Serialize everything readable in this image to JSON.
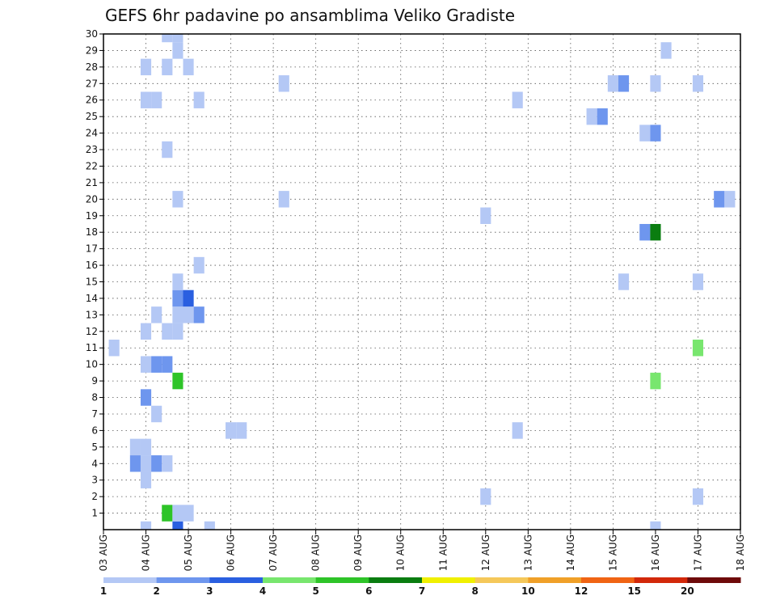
{
  "chart_data": {
    "type": "heatmap",
    "title": "GEFS 6hr padavine po ansamblima Veliko Gradiste",
    "xlabel": "",
    "ylabel": "",
    "x_tick_labels": [
      "03 AUG",
      "04 AUG",
      "05 AUG",
      "06 AUG",
      "07 AUG",
      "08 AUG",
      "09 AUG",
      "10 AUG",
      "11 AUG",
      "12 AUG",
      "13 AUG",
      "14 AUG",
      "15 AUG",
      "16 AUG",
      "17 AUG",
      "18 AUG"
    ],
    "y_tick_labels": [
      "1",
      "2",
      "3",
      "4",
      "5",
      "6",
      "7",
      "8",
      "9",
      "10",
      "11",
      "12",
      "13",
      "14",
      "15",
      "16",
      "17",
      "18",
      "19",
      "20",
      "21",
      "22",
      "23",
      "24",
      "25",
      "26",
      "27",
      "28",
      "29",
      "30"
    ],
    "xlim_steps": [
      0,
      60
    ],
    "steps_per_day": 4,
    "ylim": [
      0,
      30
    ],
    "grid": true,
    "colorbar": {
      "labels": [
        "1",
        "2",
        "3",
        "4",
        "5",
        "6",
        "7",
        "8",
        "10",
        "12",
        "15",
        "20"
      ],
      "colors": [
        "#b4c8f5",
        "#6e96ee",
        "#2a5fe0",
        "#78e66e",
        "#2ec428",
        "#0a7d10",
        "#f0f000",
        "#f5c85a",
        "#f0a028",
        "#f06414",
        "#d2280a",
        "#6e0a0a"
      ]
    },
    "cells": [
      {
        "step": 4,
        "member": 0,
        "level": 0
      },
      {
        "step": 7,
        "member": 0,
        "level": 2
      },
      {
        "step": 10,
        "member": 0,
        "level": 0
      },
      {
        "step": 52,
        "member": 0,
        "level": 0
      },
      {
        "step": 6,
        "member": 1,
        "level": 4
      },
      {
        "step": 7,
        "member": 1,
        "level": 0
      },
      {
        "step": 8,
        "member": 1,
        "level": 0
      },
      {
        "step": 36,
        "member": 2,
        "level": 0
      },
      {
        "step": 56,
        "member": 2,
        "level": 0
      },
      {
        "step": 4,
        "member": 3,
        "level": 0
      },
      {
        "step": 3,
        "member": 4,
        "level": 1
      },
      {
        "step": 4,
        "member": 4,
        "level": 0
      },
      {
        "step": 5,
        "member": 4,
        "level": 1
      },
      {
        "step": 6,
        "member": 4,
        "level": 0
      },
      {
        "step": 3,
        "member": 5,
        "level": 0
      },
      {
        "step": 4,
        "member": 5,
        "level": 0
      },
      {
        "step": 12,
        "member": 6,
        "level": 0
      },
      {
        "step": 13,
        "member": 6,
        "level": 0
      },
      {
        "step": 39,
        "member": 6,
        "level": 0
      },
      {
        "step": 5,
        "member": 7,
        "level": 0
      },
      {
        "step": 4,
        "member": 8,
        "level": 1
      },
      {
        "step": 7,
        "member": 9,
        "level": 4
      },
      {
        "step": 52,
        "member": 9,
        "level": 3
      },
      {
        "step": 4,
        "member": 10,
        "level": 0
      },
      {
        "step": 5,
        "member": 10,
        "level": 1
      },
      {
        "step": 6,
        "member": 10,
        "level": 1
      },
      {
        "step": 1,
        "member": 11,
        "level": 0
      },
      {
        "step": 56,
        "member": 11,
        "level": 3
      },
      {
        "step": 4,
        "member": 12,
        "level": 0
      },
      {
        "step": 6,
        "member": 12,
        "level": 0
      },
      {
        "step": 7,
        "member": 12,
        "level": 0
      },
      {
        "step": 5,
        "member": 13,
        "level": 0
      },
      {
        "step": 7,
        "member": 13,
        "level": 0
      },
      {
        "step": 8,
        "member": 13,
        "level": 0
      },
      {
        "step": 9,
        "member": 13,
        "level": 1
      },
      {
        "step": 7,
        "member": 14,
        "level": 1
      },
      {
        "step": 8,
        "member": 14,
        "level": 2
      },
      {
        "step": 7,
        "member": 15,
        "level": 0
      },
      {
        "step": 49,
        "member": 15,
        "level": 0
      },
      {
        "step": 56,
        "member": 15,
        "level": 0
      },
      {
        "step": 9,
        "member": 16,
        "level": 0
      },
      {
        "step": 51,
        "member": 18,
        "level": 1
      },
      {
        "step": 52,
        "member": 18,
        "level": 5
      },
      {
        "step": 36,
        "member": 19,
        "level": 0
      },
      {
        "step": 7,
        "member": 20,
        "level": 0
      },
      {
        "step": 17,
        "member": 20,
        "level": 0
      },
      {
        "step": 58,
        "member": 20,
        "level": 1
      },
      {
        "step": 59,
        "member": 20,
        "level": 0
      },
      {
        "step": 6,
        "member": 23,
        "level": 0
      },
      {
        "step": 51,
        "member": 24,
        "level": 0
      },
      {
        "step": 52,
        "member": 24,
        "level": 1
      },
      {
        "step": 46,
        "member": 25,
        "level": 0
      },
      {
        "step": 47,
        "member": 25,
        "level": 1
      },
      {
        "step": 4,
        "member": 26,
        "level": 0
      },
      {
        "step": 5,
        "member": 26,
        "level": 0
      },
      {
        "step": 9,
        "member": 26,
        "level": 0
      },
      {
        "step": 39,
        "member": 26,
        "level": 0
      },
      {
        "step": 17,
        "member": 27,
        "level": 0
      },
      {
        "step": 48,
        "member": 27,
        "level": 0
      },
      {
        "step": 49,
        "member": 27,
        "level": 1
      },
      {
        "step": 52,
        "member": 27,
        "level": 0
      },
      {
        "step": 56,
        "member": 27,
        "level": 0
      },
      {
        "step": 4,
        "member": 28,
        "level": 0
      },
      {
        "step": 6,
        "member": 28,
        "level": 0
      },
      {
        "step": 8,
        "member": 28,
        "level": 0
      },
      {
        "step": 7,
        "member": 29,
        "level": 0
      },
      {
        "step": 53,
        "member": 29,
        "level": 0
      },
      {
        "step": 6,
        "member": 30,
        "level": 0
      },
      {
        "step": 7,
        "member": 30,
        "level": 0
      }
    ]
  }
}
